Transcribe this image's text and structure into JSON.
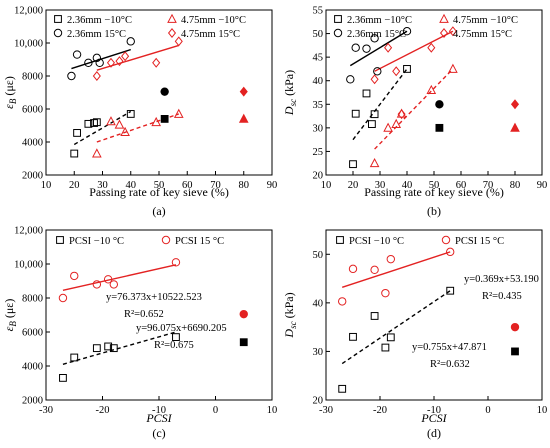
{
  "colors": {
    "black": "#000000",
    "red": "#e32222",
    "axis": "#000000"
  },
  "chart_data": [
    {
      "id": "a",
      "type": "scatter",
      "panel_label": "(a)",
      "xlabel": "Passing rate of key sieve (%)",
      "ylabel": "ε_B (με)",
      "ylabel_parts": [
        "ε",
        "B",
        " (με)"
      ],
      "xlim": [
        10,
        90
      ],
      "ylim": [
        2000,
        12000
      ],
      "xticks": [
        10,
        20,
        30,
        40,
        50,
        60,
        70,
        80,
        90
      ],
      "yticks": [
        2000,
        4000,
        6000,
        8000,
        10000,
        12000
      ],
      "ytick_labels": [
        "2000",
        "4000",
        "6000",
        "8000",
        "10,000",
        "12,000"
      ],
      "legend": [
        "2.36mm −10°C",
        "2.36mm 15°C",
        "4.75mm −10°C",
        "4.75mm 15°C"
      ],
      "series": [
        {
          "name": "2.36mm −10°C",
          "marker": "square-open",
          "color": "#000000",
          "points": [
            [
              20,
              3300
            ],
            [
              21,
              4550
            ],
            [
              25,
              5100
            ],
            [
              27,
              5150
            ],
            [
              28,
              5200
            ],
            [
              40,
              5700
            ]
          ],
          "trend": [
            [
              20,
              3850
            ],
            [
              40,
              5850
            ]
          ],
          "trend_style": "dashed"
        },
        {
          "name": "2.36mm 15°C",
          "marker": "circle-open",
          "color": "#000000",
          "points": [
            [
              19,
              8000
            ],
            [
              21,
              9300
            ],
            [
              25,
              8800
            ],
            [
              28,
              9100
            ],
            [
              29,
              8800
            ],
            [
              40,
              10100
            ]
          ],
          "trend": [
            [
              19,
              8450
            ],
            [
              40,
              9600
            ]
          ],
          "trend_style": "solid"
        },
        {
          "name": "4.75mm −10°C",
          "marker": "triangle-open",
          "color": "#e32222",
          "points": [
            [
              28,
              3300
            ],
            [
              33,
              5250
            ],
            [
              36,
              5050
            ],
            [
              38,
              4600
            ],
            [
              49,
              5200
            ],
            [
              57,
              5700
            ]
          ],
          "trend": [
            [
              28,
              4000
            ],
            [
              57,
              5700
            ]
          ],
          "trend_style": "dashed"
        },
        {
          "name": "4.75mm 15°C",
          "marker": "diamond-open",
          "color": "#e32222",
          "points": [
            [
              28,
              8000
            ],
            [
              33,
              8800
            ],
            [
              36,
              8900
            ],
            [
              38,
              9200
            ],
            [
              49,
              8800
            ],
            [
              57,
              10100
            ]
          ],
          "trend": [
            [
              28,
              8350
            ],
            [
              57,
              9850
            ]
          ],
          "trend_style": "solid"
        }
      ],
      "extra_points": [
        {
          "marker": "circle-filled",
          "color": "#000000",
          "x": 52,
          "y": 7050
        },
        {
          "marker": "square-filled",
          "color": "#000000",
          "x": 52,
          "y": 5400
        },
        {
          "marker": "diamond-filled",
          "color": "#e32222",
          "x": 80,
          "y": 7050
        },
        {
          "marker": "triangle-filled",
          "color": "#e32222",
          "x": 80,
          "y": 5400
        }
      ]
    },
    {
      "id": "b",
      "type": "scatter",
      "panel_label": "(b)",
      "xlabel": "Passing rate of key sieve (%)",
      "ylabel": "D_sc (kPa)",
      "ylabel_parts": [
        "D",
        "sc",
        " (kPa)"
      ],
      "xlim": [
        10,
        90
      ],
      "ylim": [
        20,
        55
      ],
      "xticks": [
        10,
        20,
        30,
        40,
        50,
        60,
        70,
        80,
        90
      ],
      "yticks": [
        20,
        25,
        30,
        35,
        40,
        45,
        50,
        55
      ],
      "ytick_labels": [
        "20",
        "25",
        "30",
        "35",
        "40",
        "45",
        "50",
        "55"
      ],
      "legend": [
        "2.36mm −10°C",
        "2.36mm 15°C",
        "4.75mm −10°C",
        "4.75mm 15°C"
      ],
      "series": [
        {
          "name": "2.36mm −10°C",
          "marker": "square-open",
          "color": "#000000",
          "points": [
            [
              20,
              22.3
            ],
            [
              21,
              33
            ],
            [
              25,
              37.3
            ],
            [
              27,
              30.8
            ],
            [
              28,
              32.9
            ],
            [
              40,
              42.5
            ]
          ],
          "trend": [
            [
              20,
              27.5
            ],
            [
              40,
              42.5
            ]
          ],
          "trend_style": "dashed"
        },
        {
          "name": "2.36mm 15°C",
          "marker": "circle-open",
          "color": "#000000",
          "points": [
            [
              19,
              40.3
            ],
            [
              21,
              47
            ],
            [
              25,
              46.8
            ],
            [
              28,
              49
            ],
            [
              29,
              42
            ],
            [
              40,
              50.5
            ]
          ],
          "trend": [
            [
              19,
              43.2
            ],
            [
              40,
              50.5
            ]
          ],
          "trend_style": "solid"
        },
        {
          "name": "4.75mm −10°C",
          "marker": "triangle-open",
          "color": "#e32222",
          "points": [
            [
              28,
              22.5
            ],
            [
              33,
              30
            ],
            [
              36,
              30.8
            ],
            [
              38,
              33
            ],
            [
              49,
              38
            ],
            [
              57,
              42.5
            ]
          ],
          "trend": [
            [
              28,
              25.5
            ],
            [
              57,
              42.5
            ]
          ],
          "trend_style": "dashed"
        },
        {
          "name": "4.75mm 15°C",
          "marker": "diamond-open",
          "color": "#e32222",
          "points": [
            [
              28,
              40.3
            ],
            [
              33,
              47
            ],
            [
              36,
              42
            ],
            [
              38,
              32.9
            ],
            [
              49,
              47
            ],
            [
              57,
              50.5
            ]
          ],
          "trend": [
            [
              28,
              42
            ],
            [
              57,
              50.5
            ]
          ],
          "trend_style": "solid"
        }
      ],
      "extra_points": [
        {
          "marker": "circle-filled",
          "color": "#000000",
          "x": 52,
          "y": 35
        },
        {
          "marker": "square-filled",
          "color": "#000000",
          "x": 52,
          "y": 30
        },
        {
          "marker": "diamond-filled",
          "color": "#e32222",
          "x": 80,
          "y": 35
        },
        {
          "marker": "triangle-filled",
          "color": "#e32222",
          "x": 80,
          "y": 30
        }
      ]
    },
    {
      "id": "c",
      "type": "scatter",
      "panel_label": "(c)",
      "xlabel": "PCSI",
      "ylabel": "ε_B (με)",
      "ylabel_parts": [
        "ε",
        "B",
        " (με)"
      ],
      "xlim": [
        -30,
        10
      ],
      "ylim": [
        2000,
        12000
      ],
      "xticks": [
        -30,
        -20,
        -10,
        0,
        10
      ],
      "yticks": [
        2000,
        4000,
        6000,
        8000,
        10000,
        12000
      ],
      "ytick_labels": [
        "2000",
        "4000",
        "6000",
        "8000",
        "10,000",
        "12,000"
      ],
      "legend": [
        "PCSI −10 °C",
        "PCSI 15 °C"
      ],
      "series": [
        {
          "name": "PCSI −10 °C",
          "marker": "square-open",
          "color": "#000000",
          "points": [
            [
              -27,
              3300
            ],
            [
              -25,
              4500
            ],
            [
              -21,
              5050
            ],
            [
              -19,
              5150
            ],
            [
              -18,
              5050
            ],
            [
              -7,
              5700
            ]
          ],
          "trend": [
            [
              -27,
              4100
            ],
            [
              -7,
              6000
            ]
          ],
          "trend_style": "dashed",
          "equation": "y=96.075x+6690.205",
          "r2": "R²=0.675"
        },
        {
          "name": "PCSI 15 °C",
          "marker": "circle-open",
          "color": "#e32222",
          "points": [
            [
              -27,
              8000
            ],
            [
              -25,
              9300
            ],
            [
              -21,
              8800
            ],
            [
              -19,
              9100
            ],
            [
              -18,
              8800
            ],
            [
              -7,
              10100
            ]
          ],
          "trend": [
            [
              -27,
              8450
            ],
            [
              -7,
              9950
            ]
          ],
          "trend_style": "solid",
          "equation": "y=76.373x+10522.523",
          "r2": "R²=0.652"
        }
      ],
      "extra_points": [
        {
          "marker": "circle-filled",
          "color": "#e32222",
          "x": 5,
          "y": 7050
        },
        {
          "marker": "square-filled",
          "color": "#000000",
          "x": 5,
          "y": 5400
        }
      ]
    },
    {
      "id": "d",
      "type": "scatter",
      "panel_label": "(d)",
      "xlabel": "PCSI",
      "ylabel": "D_sc (kPa)",
      "ylabel_parts": [
        "D",
        "sc",
        " (kPa)"
      ],
      "xlim": [
        -30,
        10
      ],
      "ylim": [
        20,
        55
      ],
      "xticks": [
        -30,
        -20,
        -10,
        0,
        10
      ],
      "yticks": [
        20,
        30,
        40,
        50
      ],
      "ytick_labels": [
        "20",
        "30",
        "40",
        "50"
      ],
      "legend": [
        "PCSI −10 °C",
        "PCSI 15 °C"
      ],
      "series": [
        {
          "name": "PCSI −10 °C",
          "marker": "square-open",
          "color": "#000000",
          "points": [
            [
              -27,
              22.3
            ],
            [
              -25,
              33
            ],
            [
              -21,
              37.3
            ],
            [
              -19,
              30.8
            ],
            [
              -18,
              32.9
            ],
            [
              -7,
              42.5
            ]
          ],
          "trend": [
            [
              -27,
              27.5
            ],
            [
              -7,
              42.5
            ]
          ],
          "trend_style": "dashed",
          "equation": "y=0.755x+47.871",
          "r2": "R²=0.632"
        },
        {
          "name": "PCSI 15 °C",
          "marker": "circle-open",
          "color": "#e32222",
          "points": [
            [
              -27,
              40.3
            ],
            [
              -25,
              47
            ],
            [
              -21,
              46.8
            ],
            [
              -19,
              42
            ],
            [
              -18,
              49
            ],
            [
              -7,
              50.5
            ]
          ],
          "trend": [
            [
              -27,
              43.2
            ],
            [
              -7,
              50.5
            ]
          ],
          "trend_style": "solid",
          "equation": "y=0.369x+53.190",
          "r2": "R²=0.435"
        }
      ],
      "extra_points": [
        {
          "marker": "circle-filled",
          "color": "#e32222",
          "x": 5,
          "y": 35
        },
        {
          "marker": "square-filled",
          "color": "#000000",
          "x": 5,
          "y": 30
        }
      ]
    }
  ]
}
